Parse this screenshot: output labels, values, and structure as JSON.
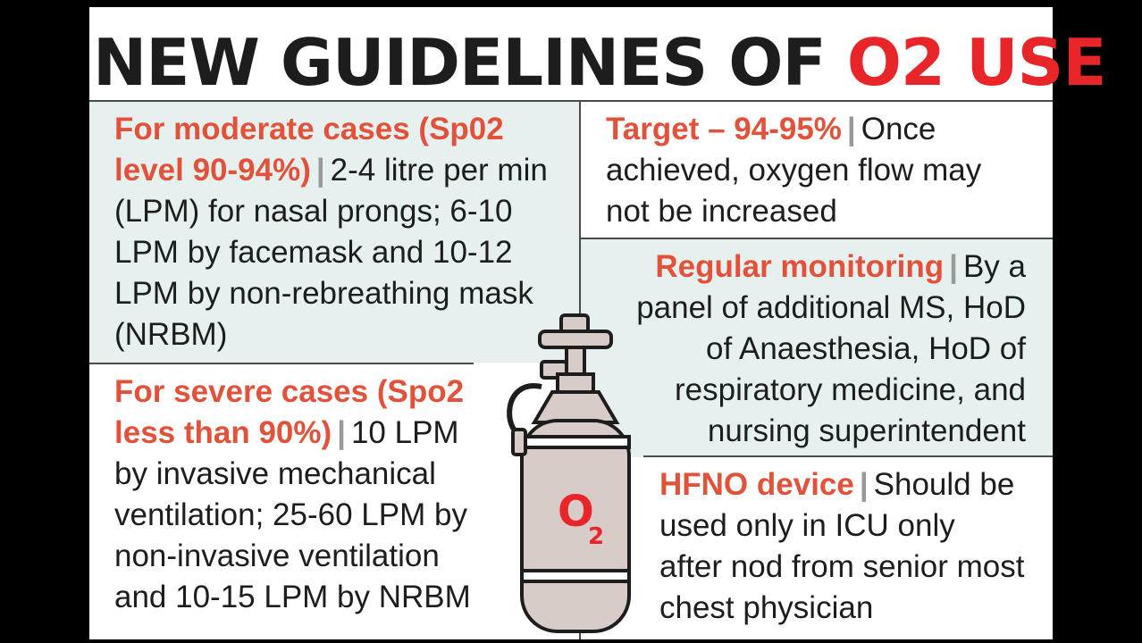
{
  "title": {
    "text": "NEW GUIDELINES OF ",
    "highlight": "O2 USE"
  },
  "moderate": {
    "heading": "For moderate cases (Sp02 level 90-94%)",
    "body": "2-4 litre per min (LPM) for nasal prongs; 6-10 LPM by facemask and 10-12 LPM by non-rebreathing mask (NRBM)"
  },
  "severe": {
    "heading": "For severe cases (Spo2 less than 90%)",
    "body": "10 LPM by invasive mechanical ventilation; 25-60 LPM by non-invasive ventilation and 10-15 LPM by NRBM"
  },
  "target": {
    "heading": "Target – 94-95%",
    "body": "Once achieved, oxygen flow may not be increased"
  },
  "monitoring": {
    "heading": "Regular monitoring",
    "body": "By a panel of additional MS, HoD of Anaesthesia, HoD of respiratory medicine, and nursing superintendent"
  },
  "hfno": {
    "heading": "HFNO device",
    "body": "Should be used only in ICU only after nod from senior most chest physician"
  },
  "cylinder": {
    "label": "O",
    "sub": "2"
  },
  "colors": {
    "heading": "#e2513a",
    "title_highlight": "#e8262a",
    "shade": "#e6f1ef",
    "cylinder": "#d8ccc8"
  }
}
